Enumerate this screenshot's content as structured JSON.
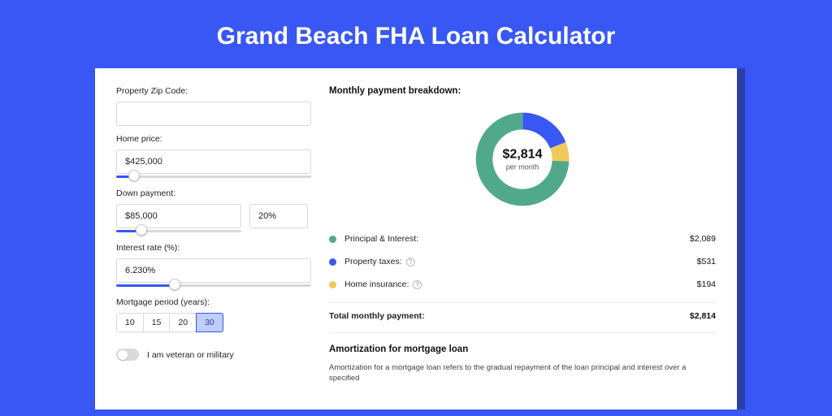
{
  "page": {
    "background": "#3857f4",
    "card_shadow": "#2a3fa8",
    "title": "Grand Beach FHA Loan Calculator"
  },
  "form": {
    "zip": {
      "label": "Property Zip Code:",
      "value": ""
    },
    "price": {
      "label": "Home price:",
      "value": "$425,000",
      "slider_pct": 9
    },
    "down": {
      "label": "Down payment:",
      "value": "$85,000",
      "pct": "20%",
      "slider_pct": 20
    },
    "rate": {
      "label": "Interest rate (%):",
      "value": "6.230%",
      "slider_pct": 30
    },
    "period": {
      "label": "Mortgage period (years):",
      "options": [
        "10",
        "15",
        "20",
        "30"
      ],
      "selected": "30"
    },
    "veteran": {
      "label": "I am veteran or military",
      "on": false
    }
  },
  "breakdown": {
    "title": "Monthly payment breakdown:",
    "donut": {
      "amount": "$2,814",
      "sub": "per month",
      "segments": [
        {
          "key": "pi",
          "value": 2089,
          "color": "#51a98b"
        },
        {
          "key": "tax",
          "value": 531,
          "color": "#3857f4"
        },
        {
          "key": "ins",
          "value": 194,
          "color": "#f2c85b"
        }
      ]
    },
    "legend": [
      {
        "key": "pi",
        "label": "Principal & Interest:",
        "value": "$2,089",
        "color": "#51a98b",
        "info": false
      },
      {
        "key": "tax",
        "label": "Property taxes:",
        "value": "$531",
        "color": "#3857f4",
        "info": true
      },
      {
        "key": "ins",
        "label": "Home insurance:",
        "value": "$194",
        "color": "#f2c85b",
        "info": true
      }
    ],
    "total": {
      "label": "Total monthly payment:",
      "value": "$2,814"
    }
  },
  "amort": {
    "title": "Amortization for mortgage loan",
    "text": "Amortization for a mortgage loan refers to the gradual repayment of the loan principal and interest over a specified"
  }
}
